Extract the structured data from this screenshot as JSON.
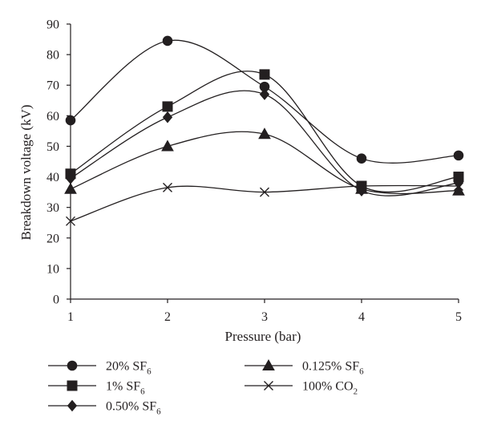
{
  "chart_data": {
    "type": "line",
    "xlabel": "Pressure (bar)",
    "ylabel": "Breakdown voltage (kV)",
    "x": [
      1,
      2,
      3,
      4,
      5
    ],
    "xlim": [
      1,
      5
    ],
    "ylim": [
      0,
      90
    ],
    "x_ticks": [
      "1",
      "2",
      "3",
      "4",
      "5"
    ],
    "y_ticks": [
      "0",
      "10",
      "20",
      "30",
      "40",
      "50",
      "60",
      "70",
      "80",
      "90"
    ],
    "grid": false,
    "smooth_lines": true,
    "legend_position": "bottom",
    "series": [
      {
        "name": "20% SF",
        "name_sub": "6",
        "marker": "circle",
        "values": [
          58.5,
          84.5,
          69.5,
          46.0,
          47.0
        ]
      },
      {
        "name": "1% SF",
        "name_sub": "6",
        "marker": "square",
        "values": [
          41.0,
          63.0,
          73.5,
          37.0,
          40.0
        ]
      },
      {
        "name": "0.50% SF",
        "name_sub": "6",
        "marker": "diamond",
        "values": [
          39.5,
          59.5,
          67.0,
          35.5,
          38.0
        ]
      },
      {
        "name": "0.125% SF",
        "name_sub": "6",
        "marker": "triangle",
        "values": [
          36.0,
          50.0,
          54.0,
          36.0,
          35.5
        ]
      },
      {
        "name": "100% CO",
        "name_sub": "2",
        "marker": "x",
        "values": [
          25.5,
          36.5,
          35.0,
          37.0,
          37.0
        ]
      }
    ]
  }
}
